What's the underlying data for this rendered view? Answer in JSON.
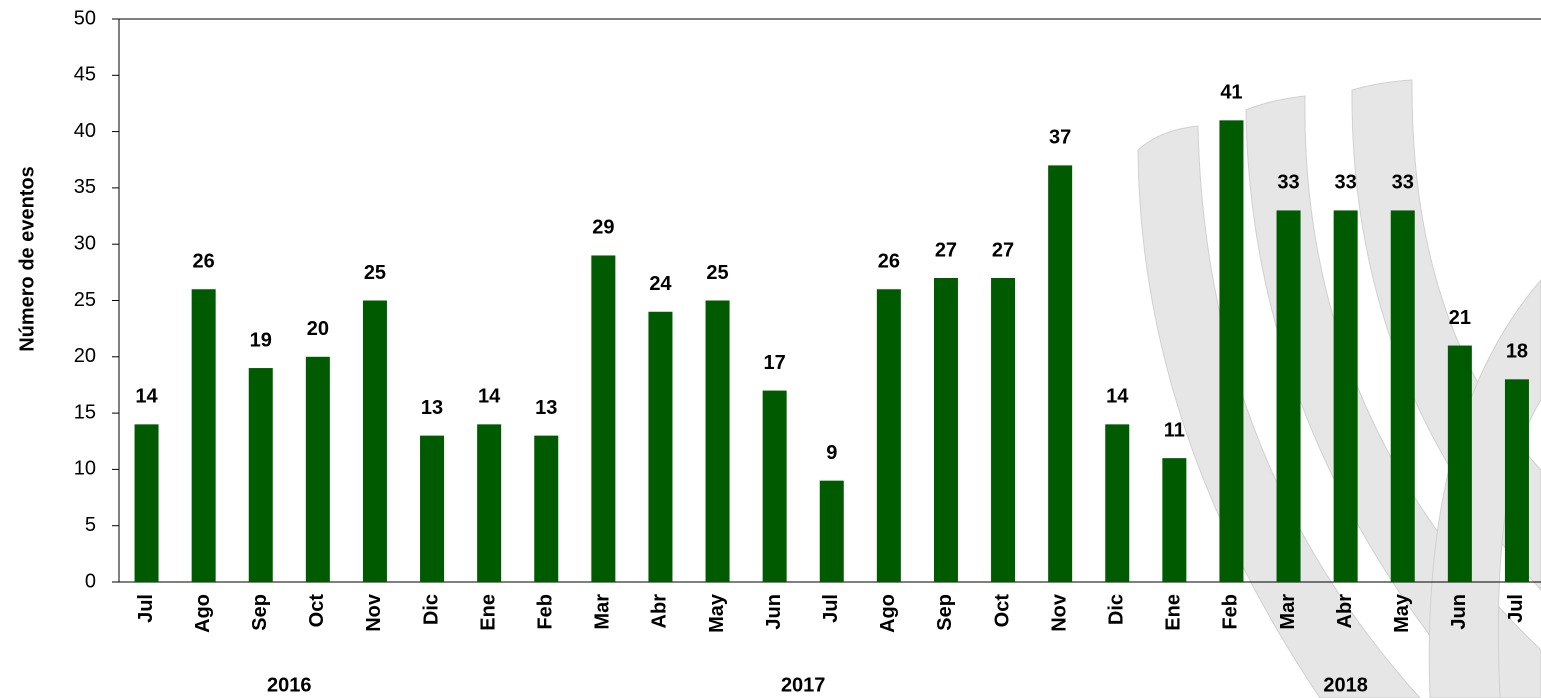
{
  "chart_data": {
    "type": "bar",
    "y_label": "Número de eventos",
    "categories": [
      "Jul",
      "Ago",
      "Sep",
      "Oct",
      "Nov",
      "Dic",
      "Ene",
      "Feb",
      "Mar",
      "Abr",
      "May",
      "Jun",
      "Jul",
      "Ago",
      "Sep",
      "Oct",
      "Nov",
      "Dic",
      "Ene",
      "Feb",
      "Mar",
      "Abr",
      "May",
      "Jun",
      "Jul"
    ],
    "values": [
      14,
      26,
      19,
      20,
      25,
      13,
      14,
      13,
      29,
      24,
      25,
      17,
      9,
      26,
      27,
      27,
      37,
      14,
      11,
      41,
      33,
      33,
      33,
      21,
      18
    ],
    "x_groups": [
      {
        "label": "2016",
        "span": [
          0,
          5
        ]
      },
      {
        "label": "2017",
        "span": [
          6,
          17
        ]
      },
      {
        "label": "2018",
        "span": [
          18,
          24
        ]
      }
    ],
    "color": "#005a00",
    "ylim": [
      0,
      50
    ],
    "yticks": [
      0,
      5,
      10,
      15,
      20,
      25,
      30,
      35,
      40,
      45,
      50
    ],
    "grid": false
  }
}
